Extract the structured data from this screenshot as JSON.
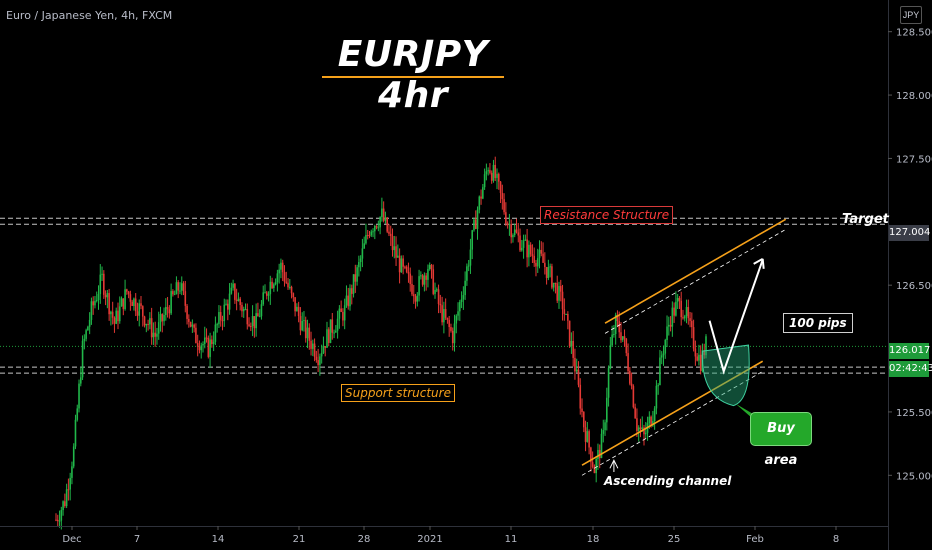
{
  "header": {
    "symbol": "Euro / Japanese Yen, 4h, FXCM",
    "currency": "JPY"
  },
  "chart_data": {
    "type": "candlestick",
    "title": "EURJPY 4hr",
    "y_axis": {
      "range": [
        124.6,
        128.75
      ],
      "ticks": [
        "128.500",
        "128.000",
        "127.500",
        "126.500",
        "125.500",
        "125.000"
      ],
      "tick_values": [
        128.5,
        128.0,
        127.5,
        126.5,
        125.5,
        125.0
      ]
    },
    "x_axis": {
      "ticks": [
        "Dec",
        "7",
        "14",
        "21",
        "28",
        "2021",
        "11",
        "18",
        "25",
        "Feb",
        "8"
      ]
    },
    "price_labels": {
      "current": "126.017",
      "countdown": "02:42:43",
      "target_level": "127.004"
    },
    "levels": {
      "resistance": 127.004,
      "support": 125.83,
      "current": 126.017
    },
    "path": [
      [
        0,
        124.65
      ],
      [
        5,
        124.8
      ],
      [
        10,
        125.2
      ],
      [
        15,
        126.0
      ],
      [
        20,
        126.3
      ],
      [
        26,
        126.55
      ],
      [
        33,
        126.2
      ],
      [
        40,
        126.45
      ],
      [
        48,
        126.3
      ],
      [
        56,
        126.1
      ],
      [
        64,
        126.35
      ],
      [
        70,
        126.5
      ],
      [
        78,
        126.1
      ],
      [
        86,
        126.0
      ],
      [
        93,
        126.25
      ],
      [
        100,
        126.45
      ],
      [
        106,
        126.3
      ],
      [
        113,
        126.2
      ],
      [
        120,
        126.5
      ],
      [
        127,
        126.65
      ],
      [
        133,
        126.4
      ],
      [
        140,
        126.15
      ],
      [
        148,
        125.95
      ],
      [
        155,
        126.15
      ],
      [
        163,
        126.3
      ],
      [
        170,
        126.6
      ],
      [
        177,
        126.95
      ],
      [
        184,
        127.05
      ],
      [
        190,
        126.8
      ],
      [
        196,
        126.6
      ],
      [
        203,
        126.45
      ],
      [
        210,
        126.65
      ],
      [
        217,
        126.3
      ],
      [
        224,
        126.1
      ],
      [
        231,
        126.55
      ],
      [
        238,
        127.1
      ],
      [
        244,
        127.45
      ],
      [
        248,
        127.35
      ],
      [
        255,
        127.0
      ],
      [
        262,
        126.85
      ],
      [
        268,
        126.75
      ],
      [
        274,
        126.7
      ],
      [
        280,
        126.55
      ],
      [
        286,
        126.35
      ],
      [
        292,
        125.95
      ],
      [
        298,
        125.4
      ],
      [
        304,
        125.05
      ],
      [
        309,
        125.3
      ],
      [
        313,
        126.0
      ],
      [
        316,
        126.2
      ],
      [
        320,
        126.1
      ],
      [
        324,
        125.8
      ],
      [
        328,
        125.4
      ],
      [
        332,
        125.3
      ],
      [
        337,
        125.5
      ],
      [
        342,
        125.95
      ],
      [
        347,
        126.25
      ],
      [
        351,
        126.35
      ],
      [
        355,
        126.3
      ],
      [
        358,
        126.15
      ],
      [
        361,
        126.0
      ],
      [
        364,
        125.9
      ],
      [
        367,
        126.03
      ]
    ],
    "annotations": [
      {
        "text": "Resistance Structure"
      },
      {
        "text": "Support structure"
      },
      {
        "text": "Target"
      },
      {
        "text": "100 pips"
      },
      {
        "text": "Ascending channel"
      },
      {
        "text": "Buy area"
      }
    ]
  },
  "colors": {
    "up": "#21b84a",
    "down": "#e53935",
    "channel": "#f6a11a",
    "buy_area": "#24a82a",
    "current_line": "#1e9b3a"
  }
}
